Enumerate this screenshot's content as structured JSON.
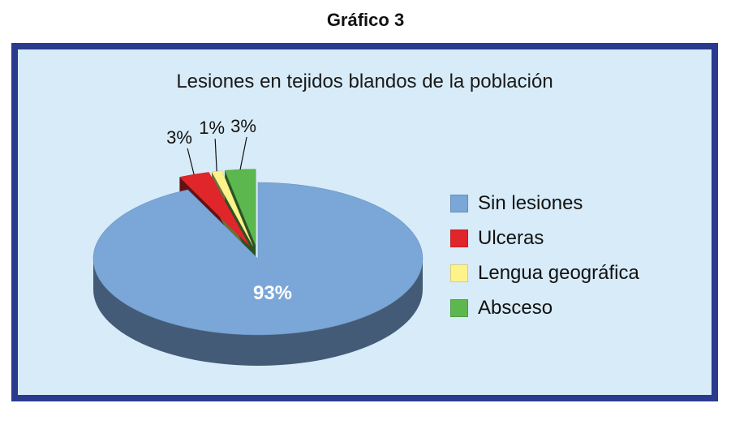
{
  "caption": "Gráfico 3",
  "chart_data": {
    "type": "pie",
    "title": "Lesiones en tejidos blandos de la población",
    "categories": [
      "Sin lesiones",
      "Ulceras",
      "Lengua geográfica",
      "Absceso"
    ],
    "values": [
      93,
      3,
      1,
      3
    ],
    "labels": [
      "93%",
      "3%",
      "1%",
      "3%"
    ],
    "colors": [
      "#7aa6d8",
      "#e0262b",
      "#fdf38a",
      "#5cb84e"
    ],
    "legend_position": "right"
  }
}
